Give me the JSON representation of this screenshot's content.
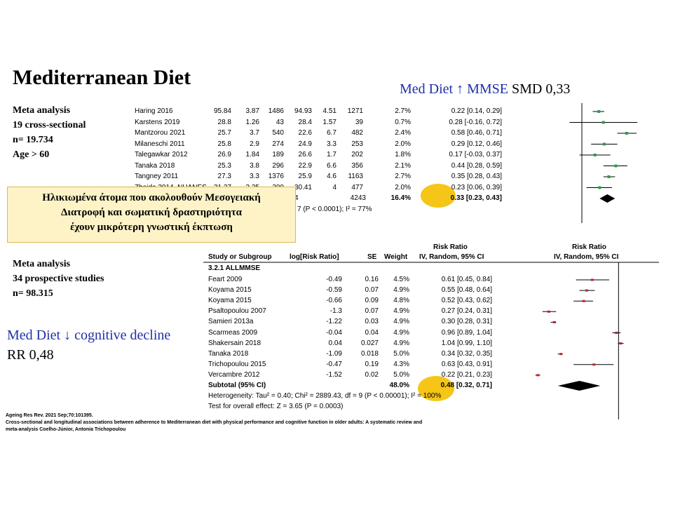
{
  "slide": {
    "title": "Mediterranean Diet",
    "med_a": {
      "prefix": "Med Diet ↑ MMSE",
      "suffix": " SMD 0,33"
    },
    "med_b": {
      "line1": "Med Diet ↓ cognitive decline",
      "line2": "RR 0,48"
    },
    "info1": [
      "Meta analysis",
      "19 cross-sectional",
      "n= 19.734",
      "Age > 60"
    ],
    "info2": [
      "Meta analysis",
      "34 prospective studies",
      "n= 98.315"
    ],
    "greek_box": [
      "Ηλικιωμένα άτομα που ακολουθούν Μεσογειακή",
      "Διατροφή και σωματική δραστηριότητα",
      "έχουν μικρότερη γνωστική έκπτωση"
    ],
    "citation": [
      "Ageing Res Rev. 2021 Sep;70:101395.",
      "Cross-sectional and longitudinal associations between adherence to Mediterranean diet with physical performance and cognitive function in older adults: A systematic review and",
      "meta-analysis   Coelho-Júnior, Antonia Trichopoulou"
    ],
    "colors": {
      "blue_text": "#1f2fa8",
      "highlight": "#f5c518",
      "box_fill": "#fdf3c7",
      "marker_a": "#2e9c4a",
      "marker_b": "#c0202a"
    }
  },
  "chart_data": [
    {
      "type": "forest",
      "axis_range": [
        -0.2,
        1.0
      ],
      "studies": [
        {
          "name": "Haring 2016",
          "v": [
            "95.84",
            "3.87",
            "1486",
            "94.93",
            "4.51",
            "1271"
          ],
          "weight": "2.7%",
          "ci_text": "0.22 [0.14, 0.29]",
          "est": 0.22,
          "lo": 0.14,
          "hi": 0.29
        },
        {
          "name": "Karstens 2019",
          "v": [
            "28.8",
            "1.26",
            "43",
            "28.4",
            "1.57",
            "39"
          ],
          "weight": "0.7%",
          "ci_text": "0.28 [-0.16, 0.72]",
          "est": 0.28,
          "lo": -0.16,
          "hi": 0.72
        },
        {
          "name": "Mantzorou 2021",
          "v": [
            "25.7",
            "3.7",
            "540",
            "22.6",
            "6.7",
            "482"
          ],
          "weight": "2.4%",
          "ci_text": "0.58 [0.46, 0.71]",
          "est": 0.58,
          "lo": 0.46,
          "hi": 0.71
        },
        {
          "name": "Milaneschi 2011",
          "v": [
            "25.8",
            "2.9",
            "274",
            "24.9",
            "3.3",
            "253"
          ],
          "weight": "2.0%",
          "ci_text": "0.29 [0.12, 0.46]",
          "est": 0.29,
          "lo": 0.12,
          "hi": 0.46
        },
        {
          "name": "Talegawkar 2012",
          "v": [
            "26.9",
            "1.84",
            "189",
            "26.6",
            "1.7",
            "202"
          ],
          "weight": "1.8%",
          "ci_text": "0.17 [-0.03, 0.37]",
          "est": 0.17,
          "lo": -0.03,
          "hi": 0.37
        },
        {
          "name": "Tanaka 2018",
          "v": [
            "25.3",
            "3.8",
            "296",
            "22.9",
            "6.6",
            "356"
          ],
          "weight": "2.1%",
          "ci_text": "0.44 [0.28, 0.59]",
          "est": 0.44,
          "lo": 0.28,
          "hi": 0.59
        },
        {
          "name": "Tangney 2011",
          "v": [
            "27.3",
            "3.3",
            "1376",
            "25.9",
            "4.6",
            "1163"
          ],
          "weight": "2.7%",
          "ci_text": "0.35 [0.28, 0.43]",
          "est": 0.35,
          "lo": 0.28,
          "hi": 0.43
        },
        {
          "name": "Zbeida 2014_NHANES",
          "v": [
            "31.27",
            "3.25",
            "200",
            "30.41",
            "4",
            "477"
          ],
          "weight": "2.0%",
          "ci_text": "0.23 [0.06, 0.39]",
          "est": 0.23,
          "lo": 0.06,
          "hi": 0.39
        }
      ],
      "subtotal": {
        "total_n": "4243",
        "total_partial": "4",
        "weight": "16.4%",
        "ci_text": "0.33 [0.23, 0.43]",
        "est": 0.33,
        "lo": 0.23,
        "hi": 0.43
      },
      "heterogeneity_partial": "7 (P < 0.0001); I² = 77%"
    },
    {
      "type": "forest",
      "axis_range": [
        0.2,
        2.0
      ],
      "headers": {
        "group": "Risk Ratio",
        "study": "Study or Subgroup",
        "log": "log[Risk Ratio]",
        "se": "SE",
        "weight": "Weight",
        "method": "IV, Random, 95% CI",
        "plot_group": "Risk Ratio",
        "plot_method": "IV, Random, 95% CI"
      },
      "subgroup": "3.2.1 ALLMMSE",
      "studies": [
        {
          "name": "Feart 2009",
          "log": "-0.49",
          "se": "0.16",
          "weight": "4.5%",
          "ci_text": "0.61 [0.45, 0.84]",
          "est": 0.61,
          "lo": 0.45,
          "hi": 0.84
        },
        {
          "name": "Koyama 2015",
          "log": "-0.59",
          "se": "0.07",
          "weight": "4.9%",
          "ci_text": "0.55 [0.48, 0.64]",
          "est": 0.55,
          "lo": 0.48,
          "hi": 0.64
        },
        {
          "name": "Koyama 2015",
          "log": "-0.66",
          "se": "0.09",
          "weight": "4.8%",
          "ci_text": "0.52 [0.43, 0.62]",
          "est": 0.52,
          "lo": 0.43,
          "hi": 0.62
        },
        {
          "name": "Psaltopoulou 2007",
          "log": "-1.3",
          "se": "0.07",
          "weight": "4.9%",
          "ci_text": "0.27 [0.24, 0.31]",
          "est": 0.27,
          "lo": 0.24,
          "hi": 0.31
        },
        {
          "name": "Samieri 2013a",
          "log": "-1.22",
          "se": "0.03",
          "weight": "4.9%",
          "ci_text": "0.30 [0.28, 0.31]",
          "est": 0.3,
          "lo": 0.28,
          "hi": 0.31
        },
        {
          "name": "Scarmeas 2009",
          "log": "-0.04",
          "se": "0.04",
          "weight": "4.9%",
          "ci_text": "0.96 [0.89, 1.04]",
          "est": 0.96,
          "lo": 0.89,
          "hi": 1.04
        },
        {
          "name": "Shakersain 2018",
          "log": "0.04",
          "se": "0.027",
          "weight": "4.9%",
          "ci_text": "1.04 [0.99, 1.10]",
          "est": 1.04,
          "lo": 0.99,
          "hi": 1.1
        },
        {
          "name": "Tanaka 2018",
          "log": "-1.09",
          "se": "0.018",
          "weight": "5.0%",
          "ci_text": "0.34 [0.32, 0.35]",
          "est": 0.34,
          "lo": 0.32,
          "hi": 0.35
        },
        {
          "name": "Trichopoulou 2015",
          "log": "-0.47",
          "se": "0.19",
          "weight": "4.3%",
          "ci_text": "0.63 [0.43, 0.91]",
          "est": 0.63,
          "lo": 0.43,
          "hi": 0.91
        },
        {
          "name": "Vercambre 2012",
          "log": "-1.52",
          "se": "0.02",
          "weight": "5.0%",
          "ci_text": "0.22 [0.21, 0.23]",
          "est": 0.22,
          "lo": 0.21,
          "hi": 0.23
        }
      ],
      "subtotal": {
        "name": "Subtotal (95% CI)",
        "weight": "48.0%",
        "ci_text": "0.48 [0.32, 0.71]",
        "est": 0.48,
        "lo": 0.32,
        "hi": 0.71
      },
      "heterogeneity": "Heterogeneity: Tau² = 0.40; Chi² = 2889.43, df = 9 (P < 0.00001); I² = 100%",
      "overall_test": "Test for overall effect: Z = 3.65 (P = 0.0003)"
    }
  ]
}
